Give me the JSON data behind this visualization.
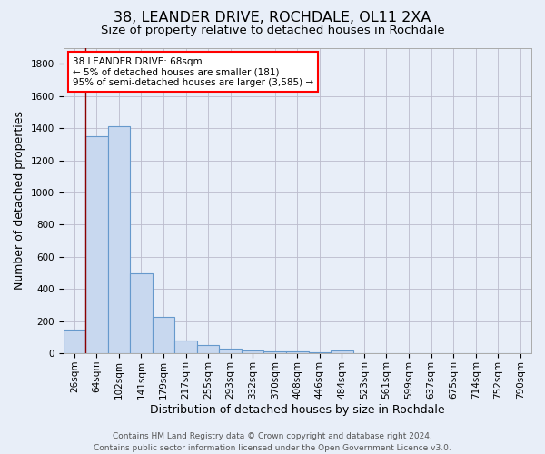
{
  "title": "38, LEANDER DRIVE, ROCHDALE, OL11 2XA",
  "subtitle": "Size of property relative to detached houses in Rochdale",
  "xlabel": "Distribution of detached houses by size in Rochdale",
  "ylabel": "Number of detached properties",
  "footer_line1": "Contains HM Land Registry data © Crown copyright and database right 2024.",
  "footer_line2": "Contains public sector information licensed under the Open Government Licence v3.0.",
  "bins": [
    "26sqm",
    "64sqm",
    "102sqm",
    "141sqm",
    "179sqm",
    "217sqm",
    "255sqm",
    "293sqm",
    "332sqm",
    "370sqm",
    "408sqm",
    "446sqm",
    "484sqm",
    "523sqm",
    "561sqm",
    "599sqm",
    "637sqm",
    "675sqm",
    "714sqm",
    "752sqm",
    "790sqm"
  ],
  "values": [
    145,
    1350,
    1410,
    495,
    225,
    80,
    50,
    30,
    20,
    10,
    12,
    8,
    18,
    0,
    0,
    0,
    0,
    0,
    0,
    0,
    0
  ],
  "bar_color": "#c8d8ef",
  "bar_edge_color": "#6699cc",
  "bar_edge_width": 0.8,
  "red_line_x": 1,
  "ylim": [
    0,
    1900
  ],
  "yticks": [
    0,
    200,
    400,
    600,
    800,
    1000,
    1200,
    1400,
    1600,
    1800
  ],
  "annotation_text": "38 LEANDER DRIVE: 68sqm\n← 5% of detached houses are smaller (181)\n95% of semi-detached houses are larger (3,585) →",
  "annotation_box_color": "white",
  "annotation_box_edge_color": "red",
  "bg_color": "#e8eef8",
  "plot_bg_color": "#e8eef8",
  "grid_color": "#bbbbcc",
  "title_fontsize": 11.5,
  "subtitle_fontsize": 9.5,
  "label_fontsize": 9,
  "tick_fontsize": 7.5,
  "footer_fontsize": 6.5,
  "annot_fontsize": 7.5
}
